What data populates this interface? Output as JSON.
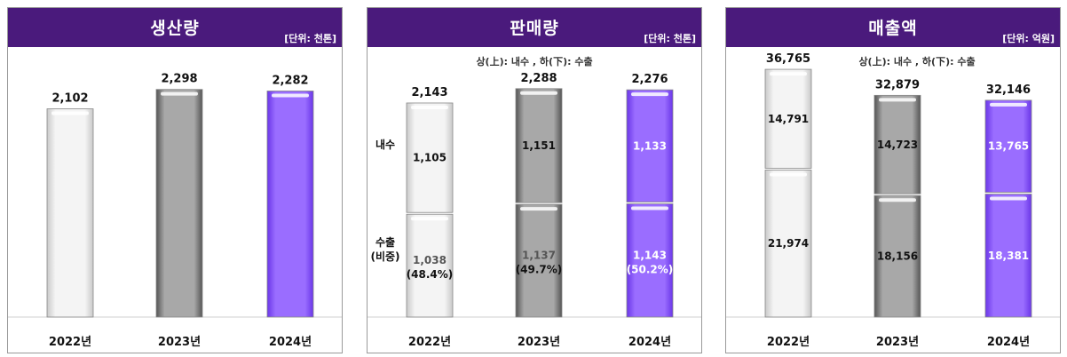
{
  "palette": {
    "light": [
      "#f4f4f4",
      "#c9c9c9"
    ],
    "gray": [
      "#a8a8a8",
      "#555555"
    ],
    "purple": [
      "#9a6dff",
      "#6a36e8"
    ],
    "header": "#4a1a7c"
  },
  "chart_data": [
    {
      "type": "bar",
      "title": "생산량",
      "unit": "[단위: 천톤]",
      "categories": [
        "2022년",
        "2023년",
        "2024년"
      ],
      "series": [
        {
          "values": [
            2102,
            2298,
            2282
          ]
        }
      ],
      "value_labels": [
        "2,102",
        "2,298",
        "2,282"
      ],
      "colors": [
        "light",
        "gray",
        "purple"
      ],
      "ylim": [
        0,
        2600
      ]
    },
    {
      "type": "bar",
      "stacked": true,
      "title": "판매량",
      "unit": "[단위: 천톤]",
      "note": "상(上): 내수 , 하(下): 수출",
      "side_labels": [
        "내수",
        "수출",
        "(비중)"
      ],
      "categories": [
        "2022년",
        "2023년",
        "2024년"
      ],
      "series": [
        {
          "name": "내수",
          "values": [
            1105,
            1151,
            1133
          ],
          "labels": [
            "1,105",
            "1,151",
            "1,133"
          ]
        },
        {
          "name": "수출",
          "values": [
            1038,
            1137,
            1143
          ],
          "labels": [
            "1,038",
            "1,137",
            "1,143"
          ],
          "shares": [
            "(48.4%)",
            "(49.7%)",
            "(50.2%)"
          ]
        }
      ],
      "totals": [
        2143,
        2288,
        2276
      ],
      "total_labels": [
        "2,143",
        "2,288",
        "2,276"
      ],
      "colors": [
        "light",
        "gray",
        "purple"
      ],
      "ylim": [
        0,
        2600
      ]
    },
    {
      "type": "bar",
      "stacked": true,
      "title": "매출액",
      "unit": "[단위: 억원]",
      "note": "상(上): 내수 , 하(下): 수출",
      "categories": [
        "2022년",
        "2023년",
        "2024년"
      ],
      "series": [
        {
          "name": "내수",
          "values": [
            14791,
            14723,
            13765
          ],
          "labels": [
            "14,791",
            "14,723",
            "13,765"
          ]
        },
        {
          "name": "수출",
          "values": [
            21974,
            18156,
            18381
          ],
          "labels": [
            "21,974",
            "18,156",
            "18,381"
          ]
        }
      ],
      "totals": [
        36765,
        32879,
        32146
      ],
      "total_labels": [
        "36,765",
        "32,879",
        "32,146"
      ],
      "colors": [
        "light",
        "gray",
        "purple"
      ],
      "ylim": [
        0,
        38500
      ]
    }
  ]
}
